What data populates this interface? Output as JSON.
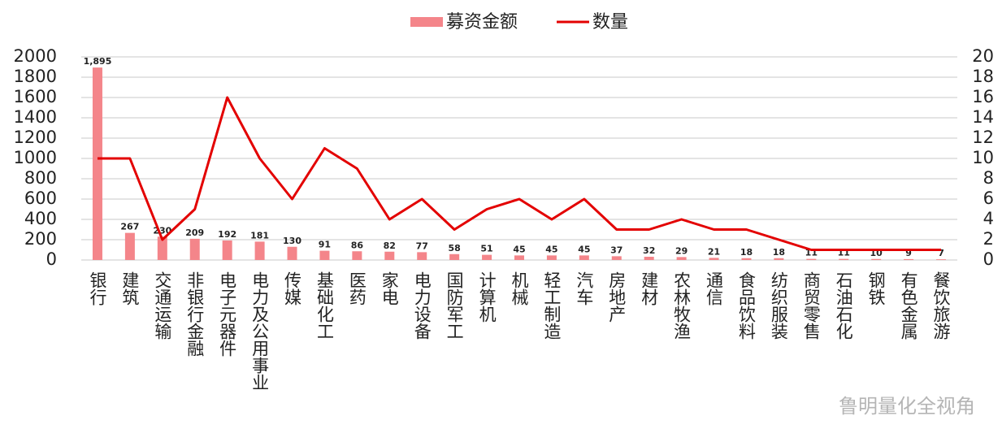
{
  "chart_data": {
    "type": "bar",
    "categories": [
      "银行",
      "建筑",
      "交通运输",
      "非银行金融",
      "电子元器件",
      "电力及公用事业",
      "传媒",
      "基础化工",
      "医药",
      "家电",
      "电力设备",
      "国防军工",
      "计算机",
      "机械",
      "轻工制造",
      "汽车",
      "房地产",
      "建材",
      "农林牧渔",
      "通信",
      "食品饮料",
      "纺织服装",
      "商贸零售",
      "石油石化",
      "钢铁",
      "有色金属",
      "餐饮旅游"
    ],
    "series": [
      {
        "name": "募资金额",
        "type": "bar",
        "color": "#f4858a",
        "values": [
          1895,
          267,
          230,
          209,
          192,
          181,
          130,
          91,
          86,
          82,
          77,
          58,
          51,
          45,
          45,
          45,
          37,
          32,
          29,
          21,
          18,
          18,
          11,
          11,
          10,
          9,
          7
        ],
        "value_labels": [
          "1,895",
          "267",
          "230",
          "209",
          "192",
          "181",
          "130",
          "91",
          "86",
          "82",
          "77",
          "58",
          "51",
          "45",
          "45",
          "45",
          "37",
          "32",
          "29",
          "21",
          "18",
          "18",
          "11",
          "11",
          "10",
          "9",
          "7"
        ]
      },
      {
        "name": "数量",
        "type": "line",
        "color": "#e30000",
        "axis": "y2",
        "values": [
          10,
          10,
          2,
          5,
          16,
          10,
          6,
          11,
          9,
          4,
          6,
          3,
          5,
          6,
          4,
          6,
          3,
          3,
          4,
          3,
          3,
          2,
          1,
          1,
          1,
          1,
          1
        ]
      }
    ],
    "ylim": [
      0,
      2000
    ],
    "yticks": [
      0,
      200,
      400,
      600,
      800,
      1000,
      1200,
      1400,
      1600,
      1800,
      2000
    ],
    "y2lim": [
      0,
      20
    ],
    "y2ticks": [
      0,
      2,
      4,
      6,
      8,
      10,
      12,
      14,
      16,
      18,
      20
    ],
    "grid": true,
    "legend": "top",
    "watermark": "鲁明量化全视角"
  }
}
